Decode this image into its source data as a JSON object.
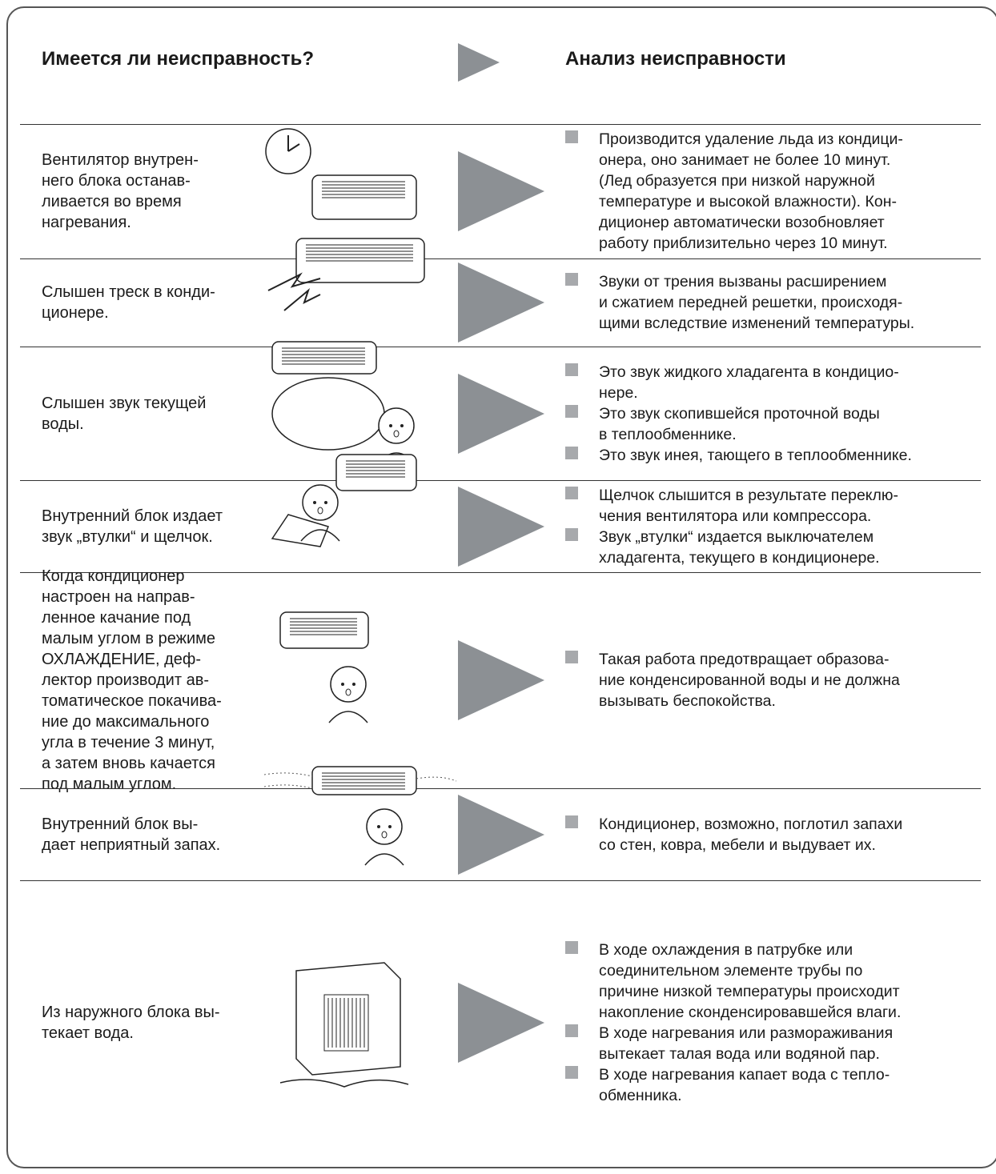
{
  "header": {
    "left": "Имеется ли неисправность?",
    "right": "Анализ неисправности"
  },
  "rows": [
    {
      "problem": [
        "Вентилятор внутрен-",
        "него блока останав-",
        "ливается во время",
        "нагревания."
      ],
      "analysis": [
        [
          "Производится удаление льда из кондици-",
          "онера, оно занимает не более 10 минут.",
          "(Лед образуется при низкой наружной",
          "температуре и высокой влажности). Кон-",
          "диционер автоматически возобновляет",
          "работу приблизительно через 10 минут."
        ]
      ]
    },
    {
      "problem": [
        "Слышен треск в конди-",
        "ционере."
      ],
      "analysis": [
        [
          "Звуки от трения вызваны расширением",
          "и сжатием передней решетки, происходя-",
          "щими вследствие изменений температуры."
        ]
      ]
    },
    {
      "problem": [
        "Слышен звук текущей",
        "воды."
      ],
      "analysis": [
        [
          "Это звук жидкого хладагента в кондицио-",
          "нере."
        ],
        [
          "Это звук скопившейся проточной воды",
          "в теплообменнике."
        ],
        [
          "Это звук инея, тающего в теплообменнике."
        ]
      ]
    },
    {
      "problem": [
        "Внутренний блок издает",
        "звук „втулки“ и щелчок."
      ],
      "analysis": [
        [
          "Щелчок слышится в результате переклю-",
          "чения вентилятора или компрессора."
        ],
        [
          "Звук „втулки“ издается выключателем",
          "хладагента, текущего в кондиционере."
        ]
      ]
    },
    {
      "problem": [
        "Когда кондиционер",
        "настроен на направ-",
        "ленное качание под",
        "малым углом в режиме",
        "ОХЛАЖДЕНИЕ, деф-",
        "лектор производит ав-",
        "томатическое покачива-",
        "ние до максимального",
        "угла в течение 3 минут,",
        "а затем вновь качается",
        "под малым углом."
      ],
      "analysis": [
        [
          "Такая работа предотвращает образова-",
          "ние конденсированной воды и не должна",
          "вызывать беспокойства."
        ]
      ]
    },
    {
      "problem": [
        "Внутренний блок вы-",
        "дает неприятный запах."
      ],
      "analysis": [
        [
          "Кондиционер, возможно, поглотил запахи",
          "со стен, ковра, мебели и выдувает их."
        ]
      ]
    },
    {
      "problem": [
        "Из наружного блока вы-",
        "текает вода."
      ],
      "analysis": [
        [
          "В ходе охлаждения в патрубке или",
          "соединительном элементе трубы по",
          "причине низкой температуры происходит",
          "накопление сконденсировавшейся влаги."
        ],
        [
          "В ходе нагревания или размораживания",
          "вытекает талая вода или водяной пар."
        ],
        [
          "В ходе нагревания капает вода с тепло-",
          "обменника."
        ]
      ]
    }
  ]
}
